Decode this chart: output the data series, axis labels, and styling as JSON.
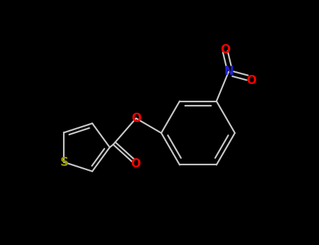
{
  "background_color": "#000000",
  "bond_color": "#c8c8c8",
  "atom_colors": {
    "S": "#999900",
    "O": "#ff0000",
    "N": "#2222cc",
    "C": "#c8c8c8"
  },
  "figsize": [
    4.55,
    3.5
  ],
  "dpi": 100,
  "bond_lw": 1.6,
  "font_size": 11
}
